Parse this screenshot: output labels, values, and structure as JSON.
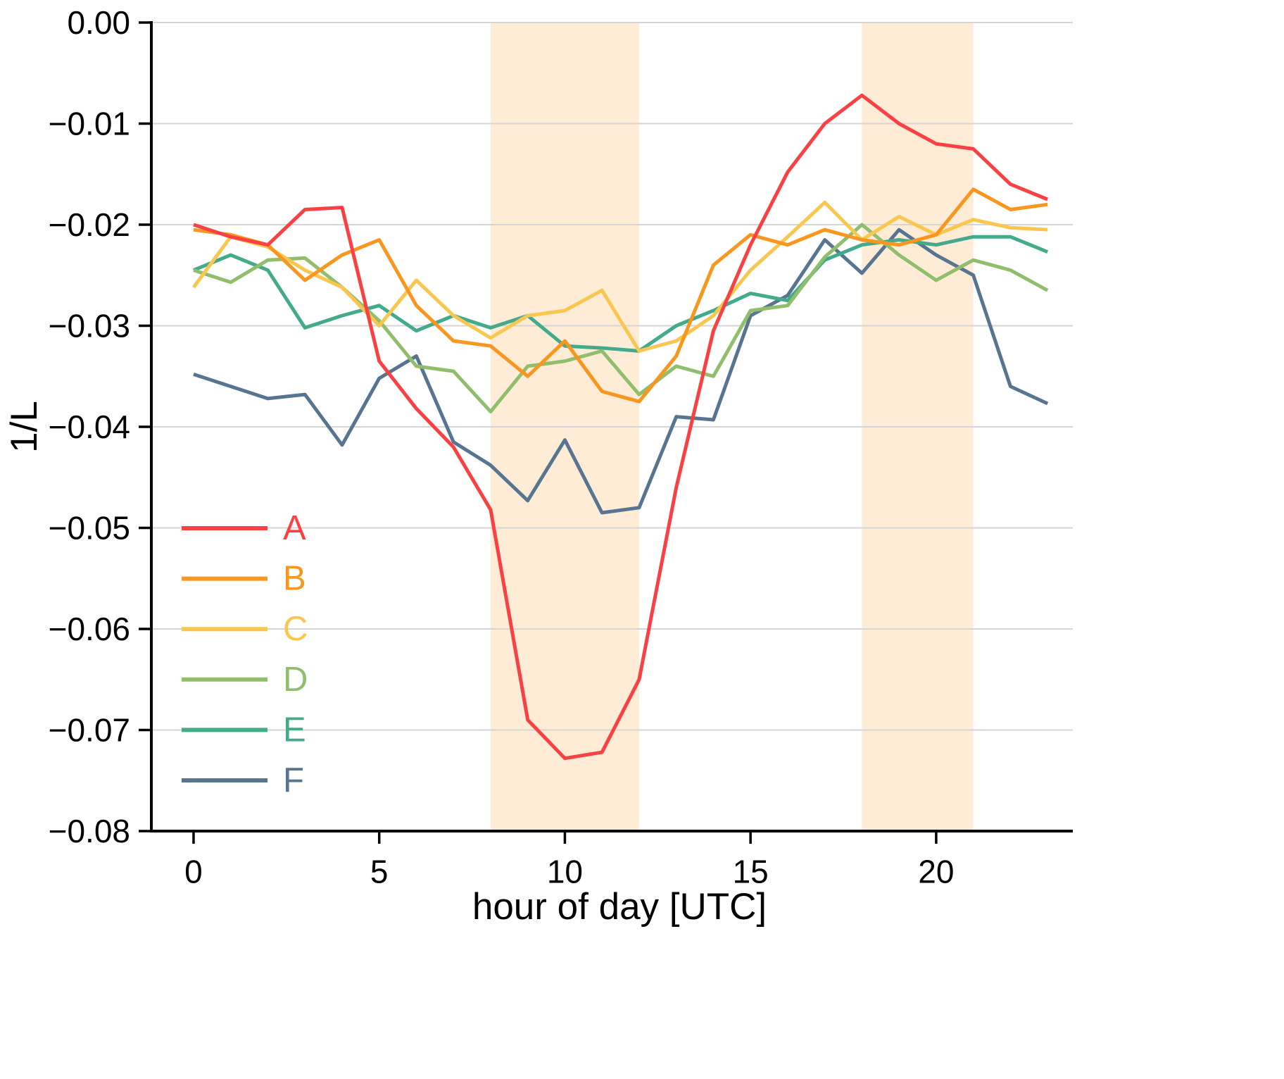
{
  "chart_data": {
    "type": "line",
    "title": "",
    "xlabel": "hour of day [UTC]",
    "ylabel": "1/L",
    "x": [
      0,
      1,
      2,
      3,
      4,
      5,
      6,
      7,
      8,
      9,
      10,
      11,
      12,
      13,
      14,
      15,
      16,
      17,
      18,
      19,
      20,
      21,
      22,
      23
    ],
    "xlim": [
      -1.137,
      23.68
    ],
    "ylim": [
      -0.08,
      0.0
    ],
    "x_ticks": [
      0,
      5,
      10,
      15,
      20
    ],
    "y_ticks": [
      0.0,
      -0.01,
      -0.02,
      -0.03,
      -0.04,
      -0.05,
      -0.06,
      -0.07,
      -0.08
    ],
    "grid": "horizontal",
    "grid_color": "#d5d5d5",
    "spine_color": "#000000",
    "legend_position": "inside-lower-left",
    "shaded_bands": [
      {
        "x0": 8,
        "x1": 12
      },
      {
        "x0": 18,
        "x1": 21
      }
    ],
    "band_color": "#f8961e",
    "band_opacity": 0.18,
    "series": [
      {
        "name": "A",
        "color": "#f94144",
        "values": [
          -0.02,
          -0.0212,
          -0.022,
          -0.0185,
          -0.0183,
          -0.0335,
          -0.0382,
          -0.042,
          -0.0482,
          -0.069,
          -0.0728,
          -0.0722,
          -0.065,
          -0.046,
          -0.0305,
          -0.022,
          -0.0148,
          -0.01,
          -0.0072,
          -0.01,
          -0.012,
          -0.0125,
          -0.016,
          -0.0175
        ]
      },
      {
        "name": "B",
        "color": "#f8961e",
        "values": [
          -0.0205,
          -0.021,
          -0.022,
          -0.0255,
          -0.023,
          -0.0215,
          -0.028,
          -0.0315,
          -0.032,
          -0.035,
          -0.0315,
          -0.0365,
          -0.0375,
          -0.033,
          -0.024,
          -0.021,
          -0.022,
          -0.0205,
          -0.0215,
          -0.022,
          -0.021,
          -0.0165,
          -0.0185,
          -0.018
        ]
      },
      {
        "name": "C",
        "color": "#f9c74f",
        "values": [
          -0.0262,
          -0.0212,
          -0.0222,
          -0.0245,
          -0.0262,
          -0.03,
          -0.0255,
          -0.029,
          -0.0312,
          -0.029,
          -0.0285,
          -0.0265,
          -0.0325,
          -0.0315,
          -0.029,
          -0.0245,
          -0.0212,
          -0.0178,
          -0.0215,
          -0.0192,
          -0.021,
          -0.0195,
          -0.0203,
          -0.0205
        ]
      },
      {
        "name": "D",
        "color": "#90be6d",
        "values": [
          -0.0245,
          -0.0257,
          -0.0235,
          -0.0233,
          -0.0262,
          -0.0295,
          -0.034,
          -0.0345,
          -0.0385,
          -0.034,
          -0.0335,
          -0.0325,
          -0.0368,
          -0.034,
          -0.035,
          -0.0285,
          -0.028,
          -0.0232,
          -0.02,
          -0.023,
          -0.0255,
          -0.0235,
          -0.0245,
          -0.0265
        ]
      },
      {
        "name": "E",
        "color": "#43aa8b",
        "values": [
          -0.0245,
          -0.023,
          -0.0245,
          -0.0302,
          -0.029,
          -0.028,
          -0.0305,
          -0.029,
          -0.0302,
          -0.029,
          -0.032,
          -0.0322,
          -0.0325,
          -0.03,
          -0.0285,
          -0.0268,
          -0.0275,
          -0.0235,
          -0.022,
          -0.0215,
          -0.022,
          -0.0212,
          -0.0212,
          -0.0227
        ]
      },
      {
        "name": "F",
        "color": "#577590",
        "values": [
          -0.0348,
          -0.036,
          -0.0372,
          -0.0368,
          -0.0418,
          -0.0352,
          -0.033,
          -0.0415,
          -0.0438,
          -0.0473,
          -0.0413,
          -0.0485,
          -0.048,
          -0.039,
          -0.0393,
          -0.029,
          -0.027,
          -0.0215,
          -0.0248,
          -0.0205,
          -0.023,
          -0.025,
          -0.036,
          -0.0377
        ]
      }
    ]
  }
}
